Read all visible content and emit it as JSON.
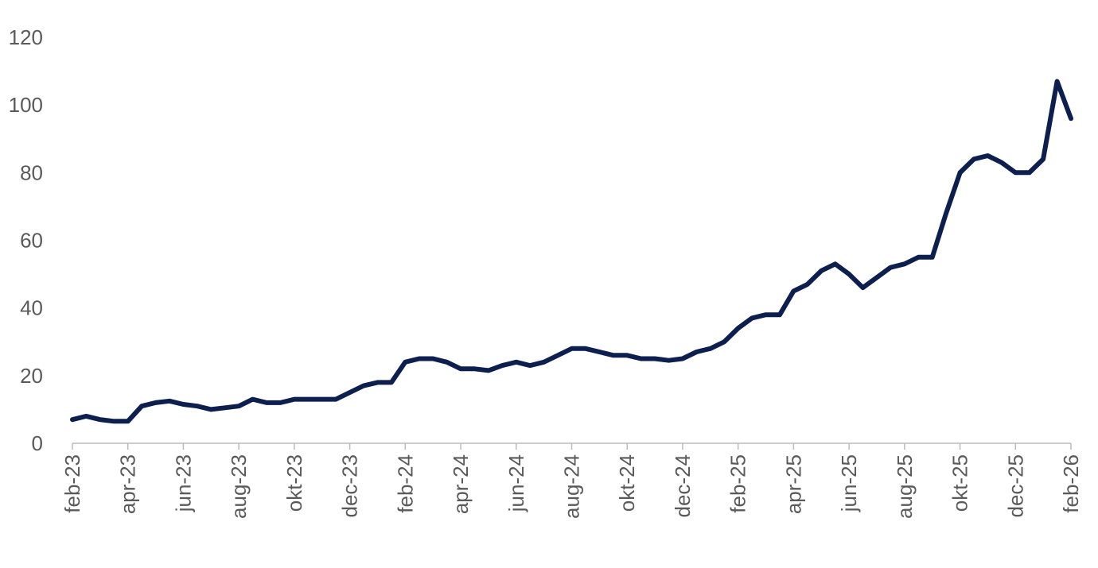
{
  "chart_data": {
    "type": "line",
    "categories": [
      "feb-23",
      null,
      null,
      null,
      "apr-23",
      null,
      null,
      null,
      "jun-23",
      null,
      null,
      null,
      "aug-23",
      null,
      null,
      null,
      "okt-23",
      null,
      null,
      null,
      "dec-23",
      null,
      null,
      null,
      "feb-24",
      null,
      null,
      null,
      "apr-24",
      null,
      null,
      null,
      "jun-24",
      null,
      null,
      null,
      "aug-24",
      null,
      null,
      null,
      "okt-24",
      null,
      null,
      null,
      "dec-24",
      null,
      null,
      null,
      "feb-25",
      null,
      null,
      null,
      "apr-25",
      null,
      null,
      null,
      "jun-25",
      null,
      null,
      null,
      "aug-25",
      null,
      null,
      null,
      "okt-25",
      null,
      null,
      null,
      "dec-25",
      null,
      null,
      null,
      "feb-26"
    ],
    "values": [
      7,
      8,
      7,
      6.5,
      6.5,
      11,
      12,
      12.5,
      11.5,
      11,
      10,
      10.5,
      11,
      13,
      12,
      12,
      13,
      13,
      13,
      13,
      15,
      17,
      18,
      18,
      24,
      25,
      25,
      24,
      22,
      22,
      21.5,
      23,
      24,
      23,
      24,
      26,
      28,
      28,
      27,
      26,
      26,
      25,
      25,
      24.5,
      25,
      27,
      28,
      30,
      34,
      37,
      38,
      38,
      45,
      47,
      51,
      53,
      50,
      46,
      49,
      52,
      53,
      55,
      55,
      68,
      80,
      84,
      85,
      83,
      80,
      80,
      84,
      107,
      96
    ],
    "color": "#0d1f4f",
    "ylim": [
      0,
      120
    ],
    "yticks": [
      0,
      20,
      40,
      60,
      80,
      100,
      120
    ],
    "grid": false
  }
}
